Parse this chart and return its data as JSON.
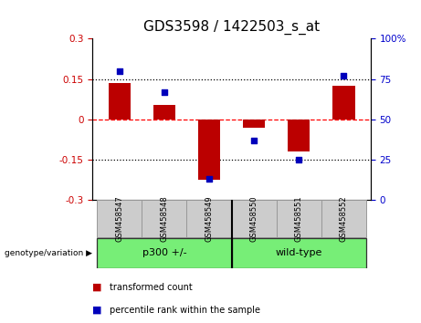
{
  "title": "GDS3598 / 1422503_s_at",
  "samples": [
    "GSM458547",
    "GSM458548",
    "GSM458549",
    "GSM458550",
    "GSM458551",
    "GSM458552"
  ],
  "red_bars": [
    0.135,
    0.055,
    -0.225,
    -0.03,
    -0.12,
    0.125
  ],
  "blue_squares_pct": [
    80,
    67,
    13,
    37,
    25,
    77
  ],
  "ylim_left": [
    -0.3,
    0.3
  ],
  "ylim_right": [
    0,
    100
  ],
  "yticks_left": [
    -0.3,
    -0.15,
    0,
    0.15,
    0.3
  ],
  "yticks_right": [
    0,
    25,
    50,
    75,
    100
  ],
  "ytick_labels_left": [
    "-0.3",
    "-0.15",
    "0",
    "0.15",
    "0.3"
  ],
  "ytick_labels_right": [
    "0",
    "25",
    "50",
    "75",
    "100%"
  ],
  "hline_dotted_vals": [
    0.15,
    -0.15
  ],
  "hline_zero_val": 0,
  "bar_color": "#bb0000",
  "square_color": "#0000bb",
  "bar_width": 0.5,
  "square_size": 25,
  "genotype_label": "genotype/variation",
  "groups": [
    {
      "label": "p300 +/-",
      "indices": [
        0,
        1,
        2
      ],
      "color": "#77ee77"
    },
    {
      "label": "wild-type",
      "indices": [
        3,
        4,
        5
      ],
      "color": "#77ee77"
    }
  ],
  "legend_items": [
    {
      "color": "#bb0000",
      "label": "transformed count"
    },
    {
      "color": "#0000bb",
      "label": "percentile rank within the sample"
    }
  ],
  "tick_color_left": "#cc0000",
  "tick_color_right": "#0000cc",
  "title_fontsize": 11,
  "tick_fontsize": 7.5
}
